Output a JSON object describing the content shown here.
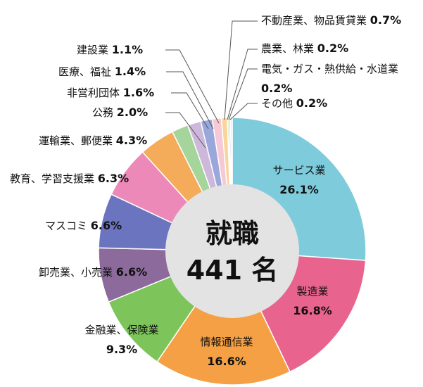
{
  "chart_data": {
    "type": "pie",
    "center": {
      "line1": "就職",
      "line2": "441 名"
    },
    "slices": [
      {
        "label": "サービス業",
        "value": 26.1,
        "value_label": "26.1%",
        "color": "#7ecbdc"
      },
      {
        "label": "製造業",
        "value": 16.8,
        "value_label": "16.8%",
        "color": "#e8648f"
      },
      {
        "label": "情報通信業",
        "value": 16.6,
        "value_label": "16.6%",
        "color": "#f5a044"
      },
      {
        "label": "金融業、保険業",
        "value": 9.3,
        "value_label": "9.3%",
        "color": "#7dc45b"
      },
      {
        "label": "卸売業、小売業",
        "value": 6.6,
        "value_label": "6.6%",
        "color": "#8c6a9c"
      },
      {
        "label": "マスコミ",
        "value": 6.6,
        "value_label": "6.6%",
        "color": "#6b75bf"
      },
      {
        "label": "教育、学習支援業",
        "value": 6.3,
        "value_label": "6.3%",
        "color": "#ec89b9"
      },
      {
        "label": "運輸業、郵便業",
        "value": 4.3,
        "value_label": "4.3%",
        "color": "#f4ab5a"
      },
      {
        "label": "公務",
        "value": 2.0,
        "value_label": "2.0%",
        "color": "#a5d59a"
      },
      {
        "label": "非営利団体",
        "value": 1.6,
        "value_label": "1.6%",
        "color": "#cdb8dc"
      },
      {
        "label": "医療、福祉",
        "value": 1.4,
        "value_label": "1.4%",
        "color": "#9aa7db"
      },
      {
        "label": "建設業",
        "value": 1.1,
        "value_label": "1.1%",
        "color": "#f7c9d4"
      },
      {
        "label": "不動産業、物品賃貸業",
        "value": 0.7,
        "value_label": "0.7%",
        "color": "#f9d49c"
      },
      {
        "label": "農業、林業",
        "value": 0.2,
        "value_label": "0.2%",
        "color": "#c9e6b8"
      },
      {
        "label": "電気・ガス・熱供給・水道業",
        "value": 0.2,
        "value_label": "0.2%",
        "color": "#b9c6e9"
      },
      {
        "label": "その他",
        "value": 0.2,
        "value_label": "0.2%",
        "color": "#bfe3ec"
      }
    ]
  }
}
